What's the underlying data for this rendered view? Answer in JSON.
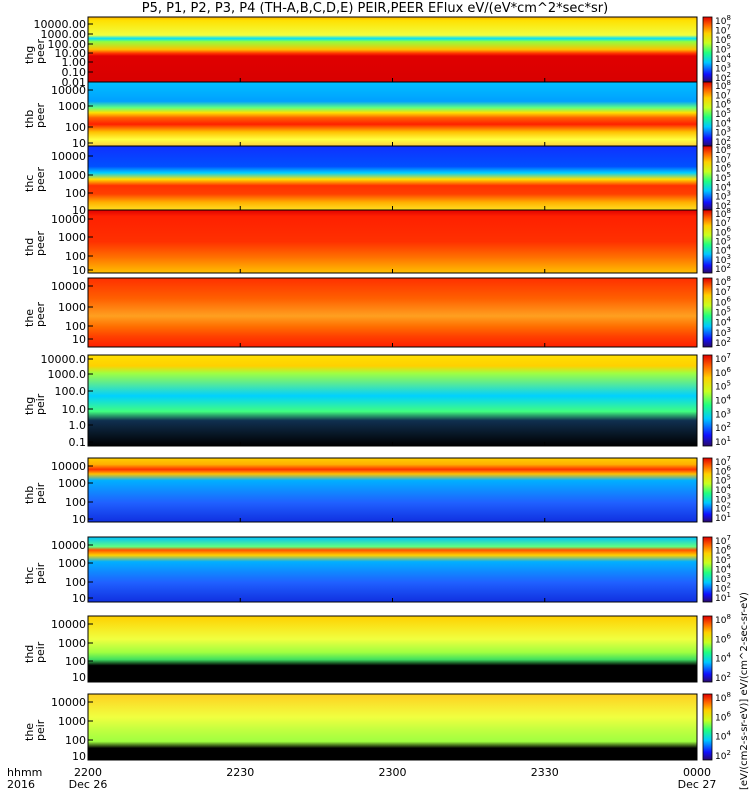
{
  "title": "P5, P1, P2, P3, P4 (TH-A,B,C,D,E) PEIR,PEER EFlux eV/(eV*cm^2*sec*sr)",
  "colorbar_units": "[eV/(cm2-s-sr-eV)] eV/(cm^2-sec-sr-eV)",
  "x_axis": {
    "row_label_1": "hhmm",
    "row_label_2": "2016",
    "ticks": [
      {
        "time": "2200",
        "date": "Dec 26"
      },
      {
        "time": "2230",
        "date": ""
      },
      {
        "time": "2300",
        "date": ""
      },
      {
        "time": "2330",
        "date": ""
      },
      {
        "time": "0000",
        "date": "Dec 27"
      }
    ]
  },
  "chart_data": {
    "type": "heatmap",
    "x_range": [
      "2016-12-26 22:00",
      "2016-12-27 00:00"
    ],
    "colormap": "rainbow (black = below range, blue = low, red = high)",
    "panels": [
      {
        "probe": "thg",
        "species": "peer",
        "y_label": "thg peer",
        "yscale": "log",
        "y_ticks": [
          "10000.00",
          "1000.00",
          "100.00",
          "10.00",
          "1.00",
          "0.10",
          "0.01"
        ],
        "cb_ticks": [
          "10^8",
          "10^7",
          "10^6",
          "10^5",
          "10^4",
          "10^3",
          "10^2"
        ]
      },
      {
        "probe": "thb",
        "species": "peer",
        "y_label": "thb peer",
        "yscale": "log",
        "y_ticks": [
          "10000",
          "1000",
          "100",
          "10"
        ],
        "cb_ticks": [
          "10^8",
          "10^7",
          "10^6",
          "10^5",
          "10^4",
          "10^3",
          "10^2"
        ]
      },
      {
        "probe": "thc",
        "species": "peer",
        "y_label": "thc peer",
        "yscale": "log",
        "y_ticks": [
          "10000",
          "1000",
          "100",
          "10"
        ],
        "cb_ticks": [
          "10^8",
          "10^7",
          "10^6",
          "10^5",
          "10^4",
          "10^3",
          "10^2"
        ]
      },
      {
        "probe": "thd",
        "species": "peer",
        "y_label": "thd peer",
        "yscale": "log",
        "y_ticks": [
          "10000",
          "1000",
          "100",
          "10"
        ],
        "cb_ticks": [
          "10^8",
          "10^7",
          "10^6",
          "10^5",
          "10^4",
          "10^3",
          "10^2"
        ]
      },
      {
        "probe": "the",
        "species": "peer",
        "y_label": "the peer",
        "yscale": "log",
        "y_ticks": [
          "10000",
          "1000",
          "100",
          "10"
        ],
        "cb_ticks": [
          "10^8",
          "10^7",
          "10^6",
          "10^5",
          "10^4",
          "10^3",
          "10^2"
        ]
      },
      {
        "probe": "thg",
        "species": "peir",
        "y_label": "thg peir",
        "yscale": "log",
        "y_ticks": [
          "10000.0",
          "1000.0",
          "100.0",
          "10.0",
          "1.0",
          "0.1"
        ],
        "cb_ticks": [
          "10^7",
          "10^6",
          "10^5",
          "10^4",
          "10^3",
          "10^2",
          "10^1"
        ]
      },
      {
        "probe": "thb",
        "species": "peir",
        "y_label": "thb peir",
        "yscale": "log",
        "y_ticks": [
          "10000",
          "1000",
          "100",
          "10"
        ],
        "cb_ticks": [
          "10^7",
          "10^6",
          "10^5",
          "10^4",
          "10^3",
          "10^2",
          "10^1"
        ]
      },
      {
        "probe": "thc",
        "species": "peir",
        "y_label": "thc peir",
        "yscale": "log",
        "y_ticks": [
          "10000",
          "1000",
          "100",
          "10"
        ],
        "cb_ticks": [
          "10^7",
          "10^6",
          "10^5",
          "10^4",
          "10^3",
          "10^2",
          "10^1"
        ]
      },
      {
        "probe": "thd",
        "species": "peir",
        "y_label": "thd peir",
        "yscale": "log",
        "y_ticks": [
          "10000",
          "1000",
          "100",
          "10"
        ],
        "cb_ticks": [
          "10^8",
          "10^6",
          "10^4",
          "10^2"
        ]
      },
      {
        "probe": "the",
        "species": "peir",
        "y_label": "the peir",
        "yscale": "log",
        "y_ticks": [
          "10000",
          "1000",
          "100",
          "10"
        ],
        "cb_ticks": [
          "10^8",
          "10^6",
          "10^4",
          "10^2"
        ]
      }
    ]
  }
}
